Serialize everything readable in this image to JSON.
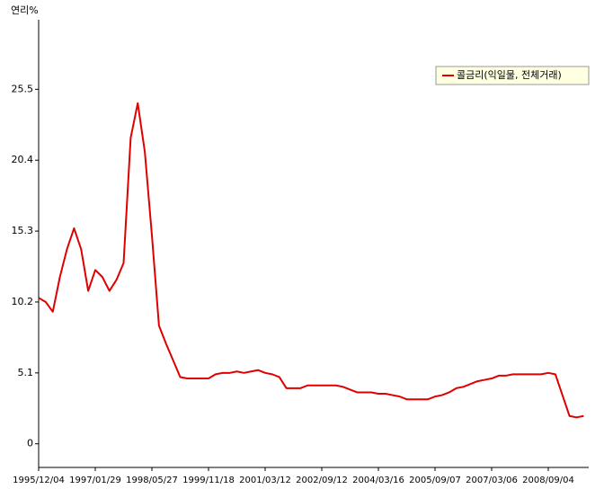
{
  "chart_data": {
    "type": "line",
    "y_axis_label": "연리%",
    "categories": [
      "1995/12/04",
      null,
      null,
      null,
      null,
      null,
      null,
      null,
      "1997/01/29",
      null,
      null,
      null,
      null,
      null,
      null,
      null,
      "1998/05/27",
      null,
      null,
      null,
      null,
      null,
      null,
      null,
      "1999/11/18",
      null,
      null,
      null,
      null,
      null,
      null,
      null,
      "2001/03/12",
      null,
      null,
      null,
      null,
      null,
      null,
      null,
      "2002/09/12",
      null,
      null,
      null,
      null,
      null,
      null,
      null,
      "2004/03/16",
      null,
      null,
      null,
      null,
      null,
      null,
      null,
      "2005/09/07",
      null,
      null,
      null,
      null,
      null,
      null,
      null,
      "2007/03/06",
      null,
      null,
      null,
      null,
      null,
      null,
      null,
      "2008/09/04",
      null,
      null,
      null,
      null,
      null
    ],
    "series": [
      {
        "name": "콜금리(익일물, 전체거래)",
        "color": "#e00000",
        "values": [
          10.5,
          10.2,
          9.5,
          12,
          14,
          15.5,
          14,
          11,
          12.5,
          12,
          11,
          11.8,
          13,
          22,
          24.5,
          21,
          15,
          8.5,
          7.2,
          6,
          4.8,
          4.7,
          4.7,
          4.7,
          4.7,
          5.0,
          5.1,
          5.1,
          5.2,
          5.1,
          5.2,
          5.3,
          5.1,
          5.0,
          4.8,
          4.0,
          4.0,
          4.0,
          4.2,
          4.2,
          4.2,
          4.2,
          4.2,
          4.1,
          3.9,
          3.7,
          3.7,
          3.7,
          3.6,
          3.6,
          3.5,
          3.4,
          3.2,
          3.2,
          3.2,
          3.2,
          3.4,
          3.5,
          3.7,
          4.0,
          4.1,
          4.3,
          4.5,
          4.6,
          4.7,
          4.9,
          4.9,
          5.0,
          5.0,
          5.0,
          5.0,
          5.0,
          5.1,
          5.0,
          3.5,
          2.0,
          1.9,
          2.0
        ]
      }
    ],
    "ylim": [
      -1.7,
      30.5
    ],
    "yticks": [
      0,
      5.1,
      10.2,
      15.3,
      20.4,
      25.5
    ],
    "legend": "top-right",
    "grid": false
  }
}
